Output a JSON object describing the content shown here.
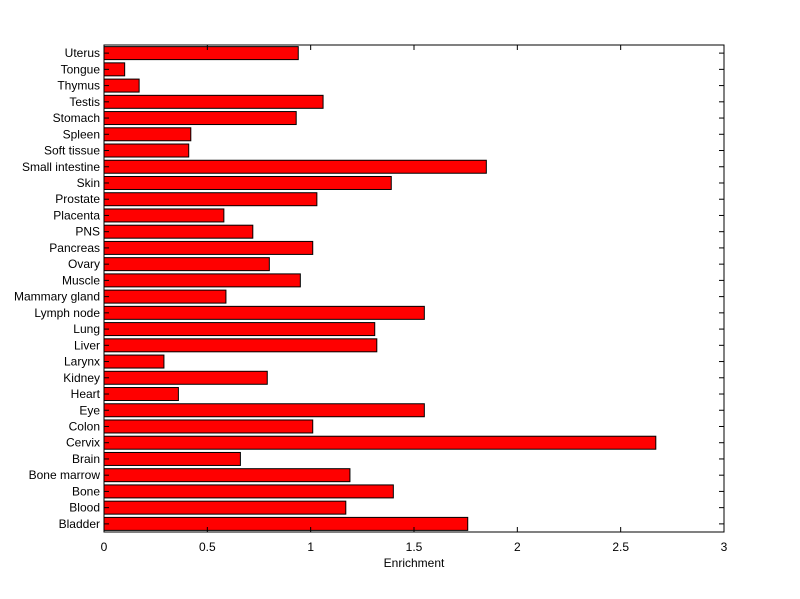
{
  "chart_data": {
    "type": "bar",
    "orientation": "horizontal",
    "title": "",
    "xlabel": "Enrichment",
    "ylabel": "",
    "xlim": [
      0,
      3
    ],
    "xticks": [
      0,
      0.5,
      1,
      1.5,
      2,
      2.5,
      3
    ],
    "xtick_labels": [
      "0",
      "0.5",
      "1",
      "1.5",
      "2",
      "2.5",
      "3"
    ],
    "grid": false,
    "legend": "none",
    "bar_color": "#ff0000",
    "bar_edge_color": "#000000",
    "categories": [
      "Uterus",
      "Tongue",
      "Thymus",
      "Testis",
      "Stomach",
      "Spleen",
      "Soft tissue",
      "Small intestine",
      "Skin",
      "Prostate",
      "Placenta",
      "PNS",
      "Pancreas",
      "Ovary",
      "Muscle",
      "Mammary gland",
      "Lymph node",
      "Lung",
      "Liver",
      "Larynx",
      "Kidney",
      "Heart",
      "Eye",
      "Colon",
      "Cervix",
      "Brain",
      "Bone marrow",
      "Bone",
      "Blood",
      "Bladder"
    ],
    "values": [
      0.94,
      0.1,
      0.17,
      1.06,
      0.93,
      0.42,
      0.41,
      1.85,
      1.39,
      1.03,
      0.58,
      0.72,
      1.01,
      0.8,
      0.95,
      0.59,
      1.55,
      1.31,
      1.32,
      0.29,
      0.79,
      0.36,
      1.55,
      1.01,
      2.67,
      0.66,
      1.19,
      1.4,
      1.17,
      1.76
    ]
  }
}
